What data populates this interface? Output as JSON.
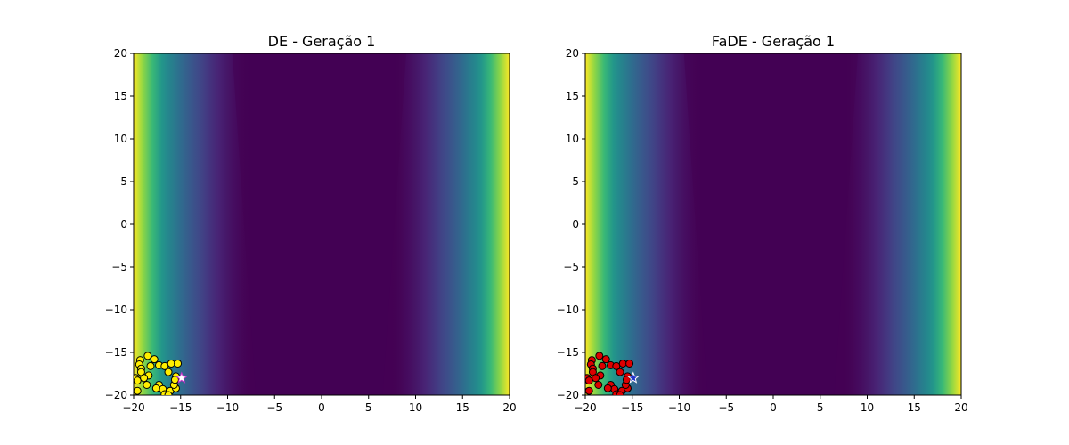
{
  "chart_data": [
    {
      "type": "scatter",
      "title": "DE - Geração 1",
      "xlabel": "",
      "ylabel": "",
      "xlim": [
        -20,
        20
      ],
      "ylim": [
        -20,
        20
      ],
      "xticks": [
        "−20",
        "−15",
        "−10",
        "−5",
        "0",
        "5",
        "10",
        "15",
        "20"
      ],
      "yticks": [
        "20",
        "15",
        "10",
        "5",
        "0",
        "−5",
        "−10",
        "−15",
        "−20"
      ],
      "grid": false,
      "legend": "none",
      "background": "contour",
      "colormap": "viridis",
      "marker_color": "#ffee00",
      "best_marker": "star",
      "best": {
        "x": -14.9,
        "y": -18.0
      },
      "series": [
        {
          "x": [
            -18.5,
            -19.3,
            -19.4,
            -19.2,
            -19.2,
            -18.2,
            -18.4,
            -17.8,
            -17.3,
            -16.7,
            -16.0,
            -15.3,
            -16.3,
            -15.5,
            -19.8,
            -19.6,
            -18.9,
            -18.6,
            -17.3,
            -16.9,
            -17.6,
            -16.7,
            -16.1,
            -15.5,
            -15.7,
            -15.6,
            -19.6,
            -16.3
          ],
          "y": [
            -15.4,
            -15.9,
            -16.4,
            -16.9,
            -17.3,
            -16.6,
            -17.7,
            -15.8,
            -16.5,
            -16.6,
            -16.3,
            -16.3,
            -17.3,
            -17.8,
            -18.0,
            -18.3,
            -18.0,
            -18.8,
            -18.8,
            -19.3,
            -19.2,
            -19.9,
            -19.5,
            -19.2,
            -18.8,
            -18.2,
            -19.5,
            -20.0
          ]
        }
      ]
    },
    {
      "type": "scatter",
      "title": "FaDE - Geração 1",
      "xlabel": "",
      "ylabel": "",
      "xlim": [
        -20,
        20
      ],
      "ylim": [
        -20,
        20
      ],
      "xticks": [
        "−20",
        "−15",
        "−10",
        "−5",
        "0",
        "5",
        "10",
        "15",
        "20"
      ],
      "yticks": [
        "20",
        "15",
        "10",
        "5",
        "0",
        "−5",
        "−10",
        "−15",
        "−20"
      ],
      "grid": false,
      "legend": "none",
      "background": "contour",
      "colormap": "viridis",
      "marker_color": "#dd0000",
      "best_marker": "star",
      "best": {
        "x": -14.9,
        "y": -18.0
      },
      "series": [
        {
          "x": [
            -18.5,
            -19.3,
            -19.4,
            -19.2,
            -19.2,
            -18.2,
            -18.4,
            -17.8,
            -17.3,
            -16.7,
            -16.0,
            -15.3,
            -16.3,
            -15.5,
            -19.8,
            -19.6,
            -18.9,
            -18.6,
            -17.3,
            -16.9,
            -17.6,
            -16.7,
            -16.1,
            -15.5,
            -15.7,
            -15.6,
            -19.6,
            -16.3
          ],
          "y": [
            -15.4,
            -15.9,
            -16.4,
            -16.9,
            -17.3,
            -16.6,
            -17.7,
            -15.8,
            -16.5,
            -16.6,
            -16.3,
            -16.3,
            -17.3,
            -17.8,
            -18.0,
            -18.3,
            -18.0,
            -18.8,
            -18.8,
            -19.3,
            -19.2,
            -19.9,
            -19.5,
            -19.2,
            -18.8,
            -18.2,
            -19.5,
            -20.0
          ]
        }
      ]
    }
  ]
}
